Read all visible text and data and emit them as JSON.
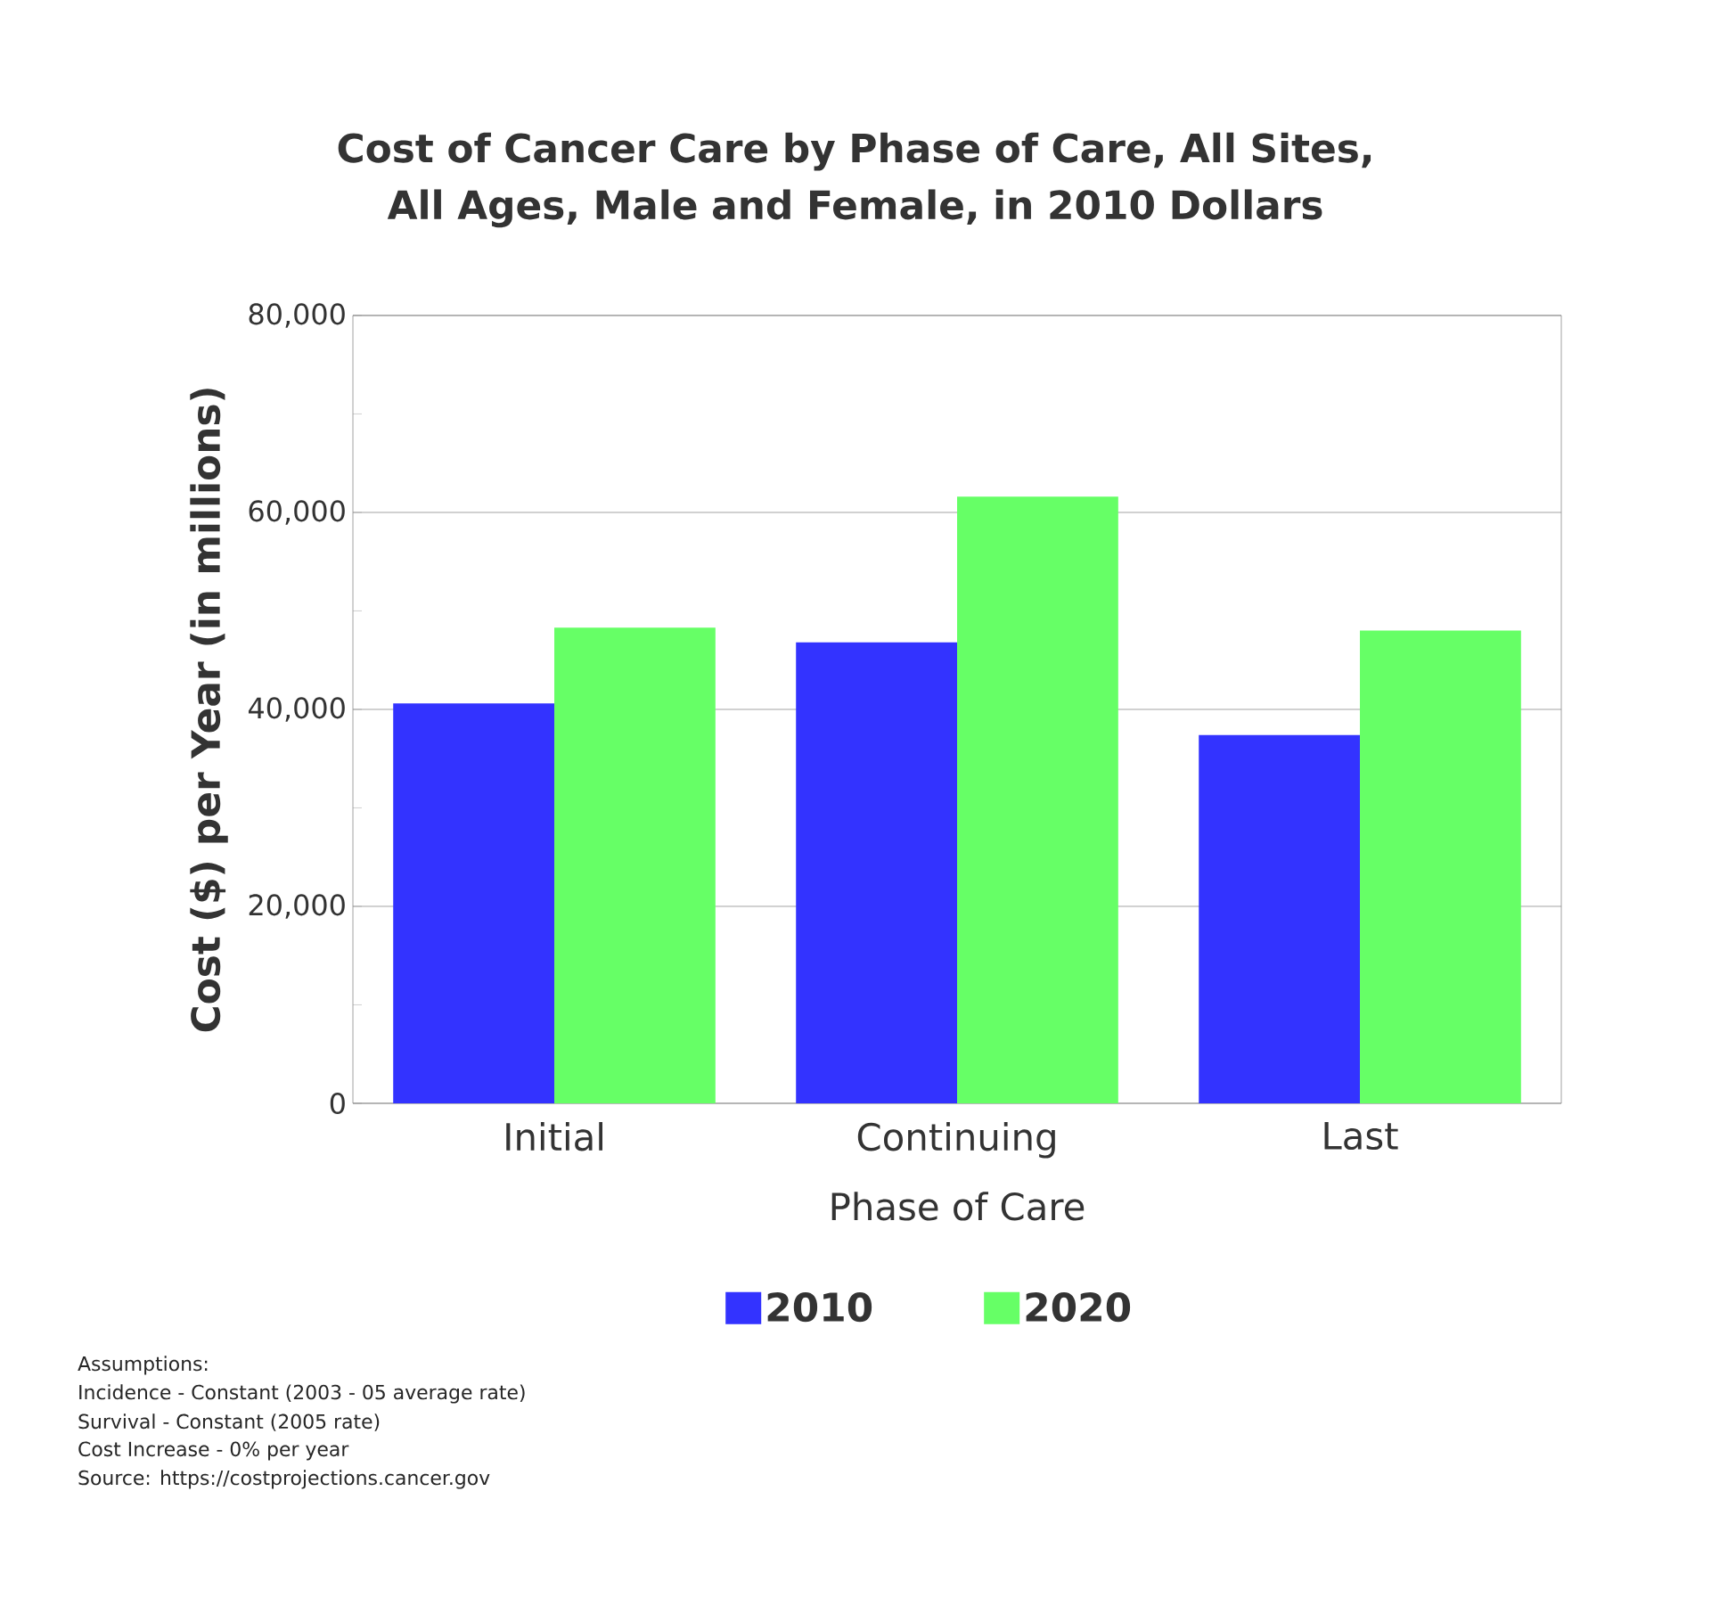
{
  "chart_data": {
    "type": "bar",
    "title": "Cost of Cancer Care by Phase of Care, All Sites, All Ages, Male and Female, in 2010 Dollars",
    "xlabel": "Phase of Care",
    "ylabel": "Cost ($) per Year (in millions)",
    "categories": [
      "Initial",
      "Continuing",
      "Last"
    ],
    "series": [
      {
        "name": "2010",
        "color": "#3333ff",
        "values": [
          40600,
          46800,
          37400
        ]
      },
      {
        "name": "2020",
        "color": "#66ff66",
        "values": [
          48300,
          61600,
          48000
        ]
      }
    ],
    "ylim": [
      0,
      80000
    ],
    "yticks": [
      {
        "value": 0,
        "label": "0"
      },
      {
        "value": 10000,
        "label": null
      },
      {
        "value": 20000,
        "label": "20,000"
      },
      {
        "value": 30000,
        "label": null
      },
      {
        "value": 40000,
        "label": "40,000"
      },
      {
        "value": 50000,
        "label": null
      },
      {
        "value": 60000,
        "label": "60,000"
      },
      {
        "value": 70000,
        "label": null
      },
      {
        "value": 80000,
        "label": "80,000"
      }
    ],
    "grid": "y",
    "legend": "bottom",
    "annotations": [
      "Assumptions:",
      "Incidence - Constant (2003 - 05 average rate)",
      "Survival - Constant (2005 rate)",
      "Cost Increase - 0% per year",
      "Source: https://costprojections.cancer.gov"
    ]
  }
}
